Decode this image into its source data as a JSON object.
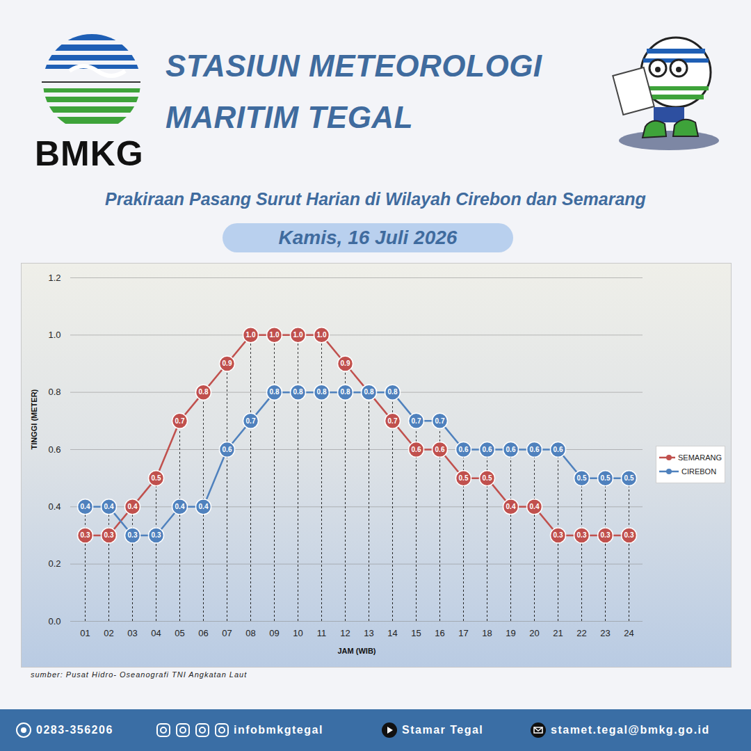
{
  "header": {
    "logo_text": "BMKG",
    "title": [
      "STASIUN METEOROLOGI",
      "MARITIM TEGAL"
    ]
  },
  "chart_data": {
    "type": "line",
    "title": "Prakiraan Pasang Surut Harian di Wilayah Cirebon dan Semarang",
    "subtitle": "Kamis, 16 Juli 2026",
    "x_label": "JAM (WIB)",
    "y_label": "TINGGI (METER)",
    "categories": [
      "01",
      "02",
      "03",
      "04",
      "05",
      "06",
      "07",
      "08",
      "09",
      "10",
      "11",
      "12",
      "13",
      "14",
      "15",
      "16",
      "17",
      "18",
      "19",
      "20",
      "21",
      "22",
      "23",
      "24"
    ],
    "series": [
      {
        "name": "SEMARANG",
        "color": "#c0504d",
        "marker": "circle",
        "line_style": "solid",
        "values": [
          0.3,
          0.3,
          0.4,
          0.5,
          0.7,
          0.8,
          0.9,
          1.0,
          1.0,
          1.0,
          1.0,
          0.9,
          0.8,
          0.7,
          0.6,
          0.6,
          0.5,
          0.5,
          0.4,
          0.4,
          0.3,
          0.3,
          0.3,
          0.3
        ],
        "value_labels": [
          "0.3",
          "0.3",
          "0.4",
          "0.5",
          "0.7",
          "0.8",
          "0.9",
          "1.0",
          "1.0",
          "1.0",
          "1.0",
          "0.9",
          "0.8",
          "0.7",
          "0.6",
          "0.6",
          "0.5",
          "0.5",
          "0.4",
          "0.4",
          "0.3",
          "0.3",
          "0.3",
          "0.3"
        ]
      },
      {
        "name": "CIREBON",
        "color": "#4f81bd",
        "marker": "circle",
        "line_style": "solid",
        "values": [
          0.4,
          0.4,
          0.3,
          0.3,
          0.4,
          0.4,
          0.6,
          0.7,
          0.8,
          0.8,
          0.8,
          0.8,
          0.8,
          0.8,
          0.7,
          0.7,
          0.6,
          0.6,
          0.6,
          0.6,
          0.6,
          0.5,
          0.5,
          0.5
        ]
      }
    ],
    "ylim": [
      0,
      1.2
    ],
    "yticks": [
      {
        "value": 0,
        "label": "0.0"
      },
      0.2,
      0.4,
      0.6,
      0.8,
      {
        "value": 1,
        "label": "1.0"
      },
      1.2
    ],
    "grid": true,
    "legend": "right",
    "data_labels": true,
    "caption": "sumber: Pusat Hidro- Oseanografi TNI Angkatan Laut"
  },
  "footer": {
    "phone": "0283-356206",
    "social": "infobmkgtegal",
    "youtube": "Stamar Tegal",
    "email": "stamet.tegal@bmkg.go.id"
  }
}
